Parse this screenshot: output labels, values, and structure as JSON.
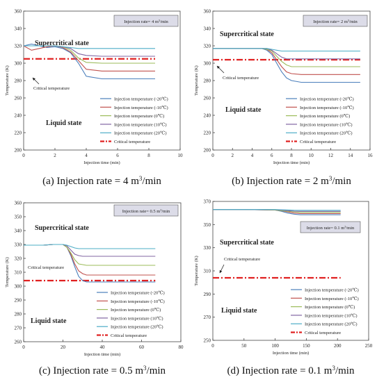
{
  "chart_data": [
    {
      "type": "line",
      "caption": "(a) Injection rate = 4 m³/min",
      "box_label": "Injection rate= 4 m³/min",
      "xlabel": "Injection time (min)",
      "ylabel": "Temperature (K)",
      "xlim": [
        0,
        10
      ],
      "ylim": [
        200,
        360
      ],
      "xticks": [
        0,
        2,
        4,
        6,
        8,
        10
      ],
      "yticks": [
        200,
        220,
        240,
        260,
        280,
        300,
        320,
        340,
        360
      ],
      "grid": false,
      "legend_position": "bottom-right",
      "annotations": [
        "Supercritical state",
        "Liquid state",
        "Critical temperature"
      ],
      "critical_temperature": 305,
      "critical_label": "Critical temperature",
      "series": [
        {
          "name": "Injection temperature (-20℃)",
          "color": "#4a7ebb",
          "x": [
            0,
            0.5,
            1,
            1.5,
            2,
            2.5,
            3,
            3.5,
            4,
            5,
            6,
            7,
            8.4
          ],
          "y": [
            320,
            322,
            320,
            318,
            319,
            317,
            312,
            300,
            285,
            282,
            282,
            282,
            282
          ]
        },
        {
          "name": "Injection temperature (-10℃)",
          "color": "#c0504d",
          "x": [
            0,
            0.5,
            1,
            1.5,
            2,
            2.5,
            3,
            3.5,
            4,
            5,
            6,
            7,
            8.4
          ],
          "y": [
            320,
            315,
            317,
            319,
            320,
            318,
            313,
            303,
            293,
            291,
            291,
            291,
            291
          ]
        },
        {
          "name": "Injection temperature (0℃)",
          "color": "#9bbb59",
          "x": [
            0,
            0.5,
            1,
            1.5,
            2,
            2.5,
            3,
            3.5,
            4,
            5,
            6,
            7,
            8.4
          ],
          "y": [
            320,
            320,
            320,
            320,
            320,
            319,
            315,
            306,
            301,
            300,
            300,
            300,
            300
          ]
        },
        {
          "name": "Injection temperature (10℃)",
          "color": "#8064a2",
          "x": [
            0,
            0.5,
            1,
            1.5,
            2,
            2.5,
            3,
            3.5,
            4,
            5,
            6,
            7,
            8.4
          ],
          "y": [
            320,
            320,
            320,
            320,
            320,
            319,
            317,
            311,
            309,
            308,
            308,
            308,
            308
          ]
        },
        {
          "name": "Injection temperature (20℃)",
          "color": "#4bacc6",
          "x": [
            0,
            0.5,
            1,
            1.5,
            2,
            2.5,
            3,
            3.5,
            4,
            5,
            6,
            7,
            8.4
          ],
          "y": [
            320,
            320,
            320,
            320,
            320,
            319,
            318,
            317,
            317,
            317,
            317,
            317,
            317
          ]
        }
      ]
    },
    {
      "type": "line",
      "caption": "(b) Injection rate = 2 m³/min",
      "box_label": "Injection rate= 2 m³/min",
      "xlabel": "Injection time (min)",
      "ylabel": "Temperature (K)",
      "xlim": [
        0,
        16
      ],
      "ylim": [
        200,
        360
      ],
      "xticks": [
        0,
        2,
        4,
        6,
        8,
        10,
        12,
        14,
        16
      ],
      "yticks": [
        200,
        220,
        240,
        260,
        280,
        300,
        320,
        340,
        360
      ],
      "grid": false,
      "legend_position": "bottom-right",
      "annotations": [
        "Supercritical state",
        "Liquid state",
        "Critical temperature"
      ],
      "critical_temperature": 304,
      "critical_label": "Critical temperature",
      "series": [
        {
          "name": "Injection temperature (-20℃)",
          "color": "#4a7ebb",
          "x": [
            0,
            1,
            2,
            3,
            4,
            5,
            5.5,
            6,
            6.5,
            7,
            7.5,
            8,
            9,
            10,
            12,
            15
          ],
          "y": [
            317,
            317,
            317,
            317,
            317,
            317,
            315,
            310,
            300,
            290,
            283,
            280,
            278,
            278,
            278,
            278
          ]
        },
        {
          "name": "Injection temperature (-10℃)",
          "color": "#c0504d",
          "x": [
            0,
            1,
            2,
            3,
            4,
            5,
            5.5,
            6,
            6.5,
            7,
            7.5,
            8,
            9,
            10,
            12,
            15
          ],
          "y": [
            317,
            317,
            317,
            317,
            317,
            317,
            316,
            312,
            304,
            296,
            290,
            288,
            287,
            287,
            287,
            287
          ]
        },
        {
          "name": "Injection temperature (0℃)",
          "color": "#9bbb59",
          "x": [
            0,
            1,
            2,
            3,
            4,
            5,
            5.5,
            6,
            6.5,
            7,
            7.5,
            8,
            9,
            10,
            12,
            15
          ],
          "y": [
            317,
            317,
            317,
            317,
            317,
            317,
            316,
            314,
            308,
            302,
            298,
            296,
            296,
            296,
            296,
            296
          ]
        },
        {
          "name": "Injection temperature (10℃)",
          "color": "#8064a2",
          "x": [
            0,
            1,
            2,
            3,
            4,
            5,
            5.5,
            6,
            6.5,
            7,
            7.5,
            8,
            9,
            10,
            12,
            15
          ],
          "y": [
            317,
            317,
            317,
            317,
            317,
            317,
            317,
            315,
            311,
            307,
            305,
            305,
            305,
            305,
            305,
            305
          ]
        },
        {
          "name": "Injection temperature (20℃)",
          "color": "#4bacc6",
          "x": [
            0,
            1,
            2,
            3,
            4,
            5,
            5.5,
            6,
            6.5,
            7,
            7.5,
            8,
            9,
            10,
            12,
            15
          ],
          "y": [
            317,
            317,
            317,
            317,
            317,
            317,
            317,
            316,
            315,
            314,
            314,
            314,
            314,
            314,
            314,
            314
          ]
        }
      ]
    },
    {
      "type": "line",
      "caption": "(c) Injection rate = 0.5 m³/min",
      "box_label": "Injection rate= 0.5 m³/min",
      "xlabel": "Injection time (min)",
      "ylabel": "Temperature (K)",
      "xlim": [
        0,
        80
      ],
      "ylim": [
        260,
        360
      ],
      "xticks": [
        0,
        20,
        40,
        60,
        80
      ],
      "yticks": [
        260,
        270,
        280,
        290,
        300,
        310,
        320,
        330,
        340,
        350,
        360
      ],
      "grid": false,
      "legend_position": "bottom-right",
      "annotations": [
        "Supercritical state",
        "Liquid state",
        "Critical temperature"
      ],
      "critical_temperature": 304,
      "critical_label": "Critical temperature",
      "series": [
        {
          "name": "Injection temperature (-20℃)",
          "color": "#4a7ebb",
          "x": [
            0,
            5,
            10,
            15,
            20,
            22,
            24,
            26,
            28,
            30,
            32,
            35,
            40,
            50,
            60,
            67
          ],
          "y": [
            329.5,
            329.5,
            329.5,
            330,
            330,
            328,
            322,
            314,
            307,
            304,
            303,
            303,
            303,
            303,
            303,
            303
          ]
        },
        {
          "name": "Injection temperature (-10℃)",
          "color": "#c0504d",
          "x": [
            0,
            5,
            10,
            15,
            20,
            22,
            24,
            26,
            28,
            30,
            32,
            35,
            40,
            50,
            60,
            67
          ],
          "y": [
            329.5,
            329.5,
            329.5,
            330,
            330,
            328,
            323,
            316,
            311,
            309,
            308,
            308,
            308,
            308,
            308,
            308
          ]
        },
        {
          "name": "Injection temperature (0℃)",
          "color": "#9bbb59",
          "x": [
            0,
            5,
            10,
            15,
            20,
            22,
            24,
            26,
            28,
            30,
            32,
            35,
            40,
            50,
            60,
            67
          ],
          "y": [
            329.5,
            329.5,
            329.5,
            330,
            330,
            328,
            324,
            319,
            316,
            315.5,
            315,
            315,
            315,
            315,
            315,
            315
          ]
        },
        {
          "name": "Injection temperature (10℃)",
          "color": "#8064a2",
          "x": [
            0,
            5,
            10,
            15,
            20,
            22,
            24,
            26,
            28,
            30,
            32,
            35,
            40,
            50,
            60,
            67
          ],
          "y": [
            329.5,
            329.5,
            329.5,
            330,
            330,
            329,
            326,
            323,
            322,
            321.5,
            321.5,
            321.5,
            321.5,
            321.5,
            321.5,
            321.5
          ]
        },
        {
          "name": "Injection temperature (20℃)",
          "color": "#4bacc6",
          "x": [
            0,
            5,
            10,
            15,
            20,
            22,
            24,
            26,
            28,
            30,
            32,
            35,
            40,
            50,
            60,
            67
          ],
          "y": [
            329.5,
            329.5,
            329.5,
            330,
            330,
            329.5,
            328.5,
            327.5,
            327,
            327,
            327,
            327,
            327,
            327,
            327,
            327
          ]
        }
      ]
    },
    {
      "type": "line",
      "caption": "(d) Injection rate = 0.1 m³/min",
      "box_label": "Injection rate= 0.1 m³/min",
      "xlabel": "Injection time (min)",
      "ylabel": "Temperature (K)",
      "xlim": [
        0,
        250
      ],
      "ylim": [
        250,
        370
      ],
      "xticks": [
        0,
        50,
        100,
        150,
        200,
        250
      ],
      "yticks": [
        250,
        270,
        290,
        310,
        330,
        350,
        370
      ],
      "grid": false,
      "legend_position": "bottom-right",
      "annotations": [
        "Supercritical state",
        "Liquid state",
        "Critical temperature"
      ],
      "critical_temperature": 304,
      "critical_label": "Critical temperature",
      "series": [
        {
          "name": "Injection temperature (-20℃)",
          "color": "#4a7ebb",
          "x": [
            0,
            50,
            100,
            110,
            120,
            130,
            140,
            160,
            190,
            205
          ],
          "y": [
            363,
            363,
            362.5,
            361.5,
            360,
            359,
            358.5,
            358.5,
            358.5,
            358.5
          ]
        },
        {
          "name": "Injection temperature (-10℃)",
          "color": "#c0504d",
          "x": [
            0,
            50,
            100,
            110,
            120,
            130,
            140,
            160,
            190,
            205
          ],
          "y": [
            363,
            363,
            362.5,
            362,
            361,
            360,
            359.5,
            359.5,
            359.5,
            359.5
          ]
        },
        {
          "name": "Injection temperature (0℃)",
          "color": "#9bbb59",
          "x": [
            0,
            50,
            100,
            110,
            120,
            130,
            140,
            160,
            190,
            205
          ],
          "y": [
            363,
            363,
            362.5,
            362,
            361.5,
            361,
            360.5,
            360.5,
            360.5,
            360.5
          ]
        },
        {
          "name": "Injection temperature (10℃)",
          "color": "#8064a2",
          "x": [
            0,
            50,
            100,
            110,
            120,
            130,
            140,
            160,
            190,
            205
          ],
          "y": [
            363,
            363,
            362.8,
            362.5,
            362,
            361.6,
            361.4,
            361.4,
            361.4,
            361.4
          ]
        },
        {
          "name": "Injection temperature (20℃)",
          "color": "#4bacc6",
          "x": [
            0,
            50,
            100,
            110,
            120,
            130,
            140,
            160,
            190,
            205
          ],
          "y": [
            363,
            363,
            363,
            362.8,
            362.6,
            362.4,
            362.3,
            362.3,
            362.3,
            362.3
          ]
        }
      ]
    }
  ]
}
